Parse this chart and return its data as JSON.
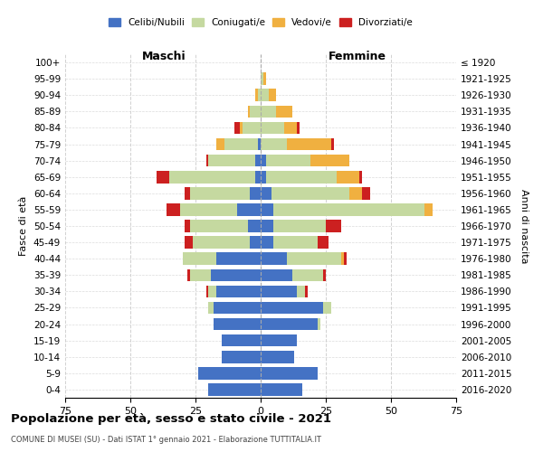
{
  "age_groups": [
    "0-4",
    "5-9",
    "10-14",
    "15-19",
    "20-24",
    "25-29",
    "30-34",
    "35-39",
    "40-44",
    "45-49",
    "50-54",
    "55-59",
    "60-64",
    "65-69",
    "70-74",
    "75-79",
    "80-84",
    "85-89",
    "90-94",
    "95-99",
    "100+"
  ],
  "birth_years": [
    "2016-2020",
    "2011-2015",
    "2006-2010",
    "2001-2005",
    "1996-2000",
    "1991-1995",
    "1986-1990",
    "1981-1985",
    "1976-1980",
    "1971-1975",
    "1966-1970",
    "1961-1965",
    "1956-1960",
    "1951-1955",
    "1946-1950",
    "1941-1945",
    "1936-1940",
    "1931-1935",
    "1926-1930",
    "1921-1925",
    "≤ 1920"
  ],
  "colors": {
    "celibi": "#4472c4",
    "coniugati": "#c5d9a0",
    "vedovi": "#f0b040",
    "divorziati": "#cc2020"
  },
  "maschi": {
    "celibi": [
      20,
      24,
      15,
      15,
      18,
      18,
      17,
      19,
      17,
      4,
      5,
      9,
      4,
      2,
      2,
      1,
      0,
      0,
      0,
      0,
      0
    ],
    "coniugati": [
      0,
      0,
      0,
      0,
      0,
      2,
      3,
      8,
      13,
      22,
      22,
      22,
      23,
      33,
      18,
      13,
      7,
      4,
      1,
      0,
      0
    ],
    "vedovi": [
      0,
      0,
      0,
      0,
      0,
      0,
      0,
      0,
      0,
      0,
      0,
      0,
      0,
      0,
      0,
      3,
      1,
      1,
      1,
      0,
      0
    ],
    "divorziati": [
      0,
      0,
      0,
      0,
      0,
      0,
      1,
      1,
      0,
      3,
      2,
      5,
      2,
      5,
      1,
      0,
      2,
      0,
      0,
      0,
      0
    ]
  },
  "femmine": {
    "celibi": [
      16,
      22,
      13,
      14,
      22,
      24,
      14,
      12,
      10,
      5,
      5,
      5,
      4,
      2,
      2,
      0,
      0,
      0,
      0,
      0,
      0
    ],
    "coniugati": [
      0,
      0,
      0,
      0,
      1,
      3,
      3,
      12,
      21,
      17,
      20,
      58,
      30,
      27,
      17,
      10,
      9,
      6,
      3,
      1,
      0
    ],
    "vedovi": [
      0,
      0,
      0,
      0,
      0,
      0,
      0,
      0,
      1,
      0,
      0,
      3,
      5,
      9,
      15,
      17,
      5,
      6,
      3,
      1,
      0
    ],
    "divorziati": [
      0,
      0,
      0,
      0,
      0,
      0,
      1,
      1,
      1,
      4,
      6,
      0,
      3,
      1,
      0,
      1,
      1,
      0,
      0,
      0,
      0
    ]
  },
  "title": "Popolazione per età, sesso e stato civile - 2021",
  "subtitle": "COMUNE DI MUSEI (SU) - Dati ISTAT 1° gennaio 2021 - Elaborazione TUTTITALIA.IT",
  "xlabel_maschi": "Maschi",
  "xlabel_femmine": "Femmine",
  "ylabel": "Fasce di età",
  "ylabel_right": "Anni di nascita",
  "xlim": 75,
  "legend_labels": [
    "Celibi/Nubili",
    "Coniugati/e",
    "Vedovi/e",
    "Divorziati/e"
  ],
  "background_color": "#ffffff",
  "grid_color": "#cccccc"
}
